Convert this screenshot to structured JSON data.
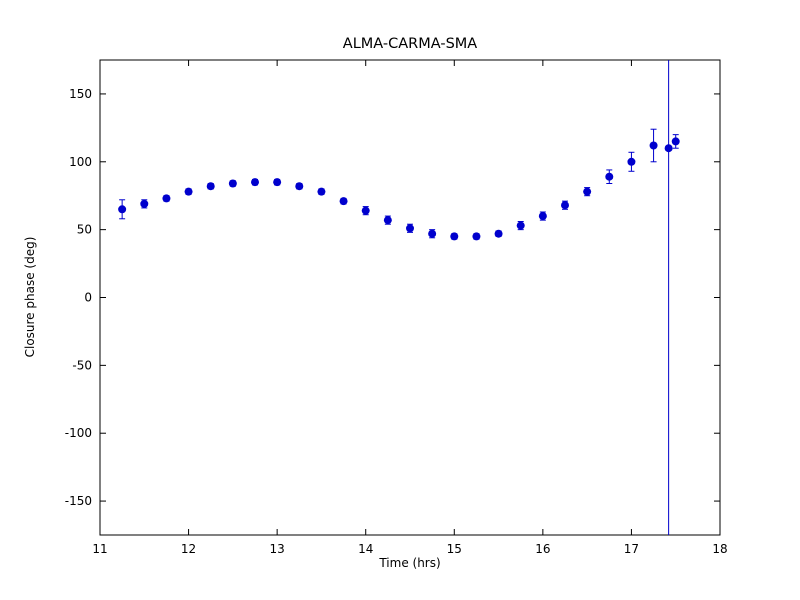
{
  "figure": {
    "title": "ALMA-CARMA-SMA",
    "xlabel": "Time (hrs)",
    "ylabel": "Closure phase (deg)"
  },
  "chart_data": {
    "type": "scatter",
    "title": "ALMA-CARMA-SMA",
    "xlabel": "Time (hrs)",
    "ylabel": "Closure phase (deg)",
    "xlim": [
      11,
      18
    ],
    "ylim": [
      -175,
      175
    ],
    "xticks": [
      11,
      12,
      13,
      14,
      15,
      16,
      17,
      18
    ],
    "yticks": [
      -150,
      -100,
      -50,
      0,
      50,
      100,
      150
    ],
    "grid": false,
    "legend": "none",
    "marker": "circle",
    "marker_color": "#0000cd",
    "errorbars": true,
    "series": [
      {
        "name": "closure-phase",
        "x": [
          11.25,
          11.5,
          11.75,
          12.0,
          12.25,
          12.5,
          12.75,
          13.0,
          13.25,
          13.5,
          13.75,
          14.0,
          14.25,
          14.5,
          14.75,
          15.0,
          15.25,
          15.5,
          15.75,
          16.0,
          16.25,
          16.5,
          16.75,
          17.0,
          17.25,
          17.42,
          17.5
        ],
        "y": [
          65,
          69,
          73,
          78,
          82,
          84,
          85,
          85,
          82,
          78,
          71,
          64,
          57,
          51,
          47,
          45,
          45,
          47,
          53,
          60,
          68,
          78,
          89,
          100,
          112,
          110,
          115
        ],
        "yerr": [
          7,
          3,
          2,
          2,
          2,
          2,
          2,
          2,
          2,
          2,
          2,
          3,
          3,
          3,
          3,
          2,
          2,
          2,
          3,
          3,
          3,
          3,
          5,
          7,
          12,
          500,
          5
        ]
      }
    ],
    "annotations": [
      {
        "type": "full-height-errorbar",
        "x": 17.42,
        "note": "error bar spans entire y-range, appears as vertical line"
      }
    ]
  }
}
